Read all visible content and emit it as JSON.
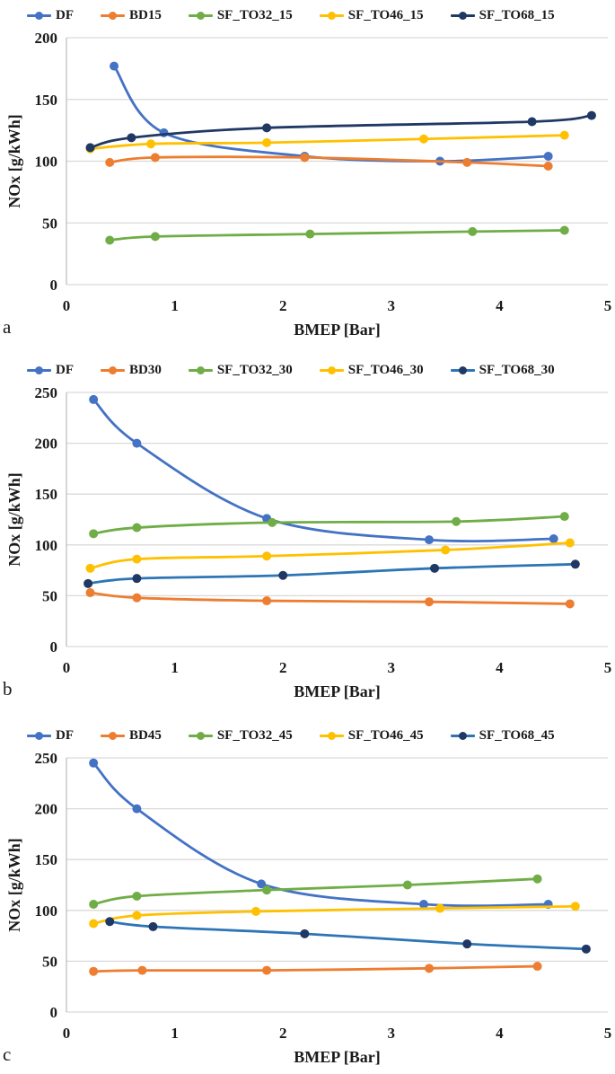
{
  "chart_data": [
    {
      "id": "a",
      "sublabel": "a",
      "type": "line",
      "xlabel": "BMEP [Bar]",
      "ylabel": "NOx [g/kWh]",
      "xlim": [
        0,
        5
      ],
      "ylim": [
        0,
        200
      ],
      "xticks": [
        0,
        1,
        2,
        3,
        4,
        5
      ],
      "yticks": [
        0,
        50,
        100,
        150,
        200
      ],
      "grid": "horizontal",
      "legend_position": "top",
      "series": [
        {
          "name": "DF",
          "line_color": "#4472C4",
          "marker_color": "#4472C4",
          "points": [
            [
              0.44,
              177
            ],
            [
              0.9,
              123
            ],
            [
              2.2,
              104
            ],
            [
              3.45,
              100
            ],
            [
              4.45,
              104
            ]
          ]
        },
        {
          "name": "BD15",
          "line_color": "#ED7D31",
          "marker_color": "#ED7D31",
          "points": [
            [
              0.4,
              99
            ],
            [
              0.82,
              103
            ],
            [
              2.2,
              103
            ],
            [
              3.7,
              99
            ],
            [
              4.45,
              96
            ]
          ]
        },
        {
          "name": "SF_TO32_15",
          "line_color": "#70AD47",
          "marker_color": "#70AD47",
          "points": [
            [
              0.4,
              36
            ],
            [
              0.82,
              39
            ],
            [
              2.25,
              41
            ],
            [
              3.75,
              43
            ],
            [
              4.6,
              44
            ]
          ]
        },
        {
          "name": "SF_TO46_15",
          "line_color": "#FFC000",
          "marker_color": "#FFC000",
          "points": [
            [
              0.22,
              110
            ],
            [
              0.78,
              114
            ],
            [
              1.85,
              115
            ],
            [
              3.3,
              118
            ],
            [
              4.6,
              121
            ]
          ]
        },
        {
          "name": "SF_TO68_15",
          "line_color": "#1F3864",
          "marker_color": "#1F3864",
          "points": [
            [
              0.22,
              111
            ],
            [
              0.6,
              119
            ],
            [
              1.85,
              127
            ],
            [
              4.3,
              132
            ],
            [
              4.85,
              137
            ]
          ]
        }
      ]
    },
    {
      "id": "b",
      "sublabel": "b",
      "type": "line",
      "xlabel": "BMEP [Bar]",
      "ylabel": "NOx [g/kWh]",
      "xlim": [
        0,
        5
      ],
      "ylim": [
        0,
        250
      ],
      "xticks": [
        0,
        1,
        2,
        3,
        4,
        5
      ],
      "yticks": [
        0,
        50,
        100,
        150,
        200,
        250
      ],
      "grid": "horizontal",
      "legend_position": "top",
      "series": [
        {
          "name": "DF",
          "line_color": "#4472C4",
          "marker_color": "#4472C4",
          "points": [
            [
              0.25,
              243
            ],
            [
              0.65,
              200
            ],
            [
              1.85,
              126
            ],
            [
              3.35,
              105
            ],
            [
              4.5,
              106
            ]
          ]
        },
        {
          "name": "BD30",
          "line_color": "#ED7D31",
          "marker_color": "#ED7D31",
          "points": [
            [
              0.22,
              53
            ],
            [
              0.65,
              48
            ],
            [
              1.85,
              45
            ],
            [
              3.35,
              44
            ],
            [
              4.65,
              42
            ]
          ]
        },
        {
          "name": "SF_TO32_30",
          "line_color": "#70AD47",
          "marker_color": "#70AD47",
          "points": [
            [
              0.25,
              111
            ],
            [
              0.65,
              117
            ],
            [
              1.9,
              122
            ],
            [
              3.6,
              123
            ],
            [
              4.6,
              128
            ]
          ]
        },
        {
          "name": "SF_TO46_30",
          "line_color": "#FFC000",
          "marker_color": "#FFC000",
          "points": [
            [
              0.22,
              77
            ],
            [
              0.65,
              86
            ],
            [
              1.85,
              89
            ],
            [
              3.5,
              95
            ],
            [
              4.65,
              102
            ]
          ]
        },
        {
          "name": "SF_TO68_30",
          "line_color": "#2E75B6",
          "marker_color": "#1F3864",
          "points": [
            [
              0.2,
              62
            ],
            [
              0.65,
              67
            ],
            [
              2.0,
              70
            ],
            [
              3.4,
              77
            ],
            [
              4.7,
              81
            ]
          ]
        }
      ]
    },
    {
      "id": "c",
      "sublabel": "c",
      "type": "line",
      "xlabel": "BMEP [Bar]",
      "ylabel": "NOx [g/kWh]",
      "xlim": [
        0,
        5
      ],
      "ylim": [
        0,
        250
      ],
      "xticks": [
        0,
        1,
        2,
        3,
        4,
        5
      ],
      "yticks": [
        0,
        50,
        100,
        150,
        200,
        250
      ],
      "grid": "horizontal",
      "legend_position": "top",
      "series": [
        {
          "name": "DF",
          "line_color": "#4472C4",
          "marker_color": "#4472C4",
          "points": [
            [
              0.25,
              245
            ],
            [
              0.65,
              200
            ],
            [
              1.8,
              126
            ],
            [
              3.3,
              106
            ],
            [
              4.45,
              106
            ]
          ]
        },
        {
          "name": "BD45",
          "line_color": "#ED7D31",
          "marker_color": "#ED7D31",
          "points": [
            [
              0.25,
              40
            ],
            [
              0.7,
              41
            ],
            [
              1.85,
              41
            ],
            [
              3.35,
              43
            ],
            [
              4.35,
              45
            ]
          ]
        },
        {
          "name": "SF_TO32_45",
          "line_color": "#70AD47",
          "marker_color": "#70AD47",
          "points": [
            [
              0.25,
              106
            ],
            [
              0.65,
              114
            ],
            [
              1.85,
              120
            ],
            [
              3.15,
              125
            ],
            [
              4.35,
              131
            ]
          ]
        },
        {
          "name": "SF_TO46_45",
          "line_color": "#FFC000",
          "marker_color": "#FFC000",
          "points": [
            [
              0.25,
              87
            ],
            [
              0.65,
              95
            ],
            [
              1.75,
              99
            ],
            [
              3.45,
              102
            ],
            [
              4.7,
              104
            ]
          ]
        },
        {
          "name": "SF_TO68_45",
          "line_color": "#2E75B6",
          "marker_color": "#1F3864",
          "points": [
            [
              0.4,
              89
            ],
            [
              0.8,
              84
            ],
            [
              2.2,
              77
            ],
            [
              3.7,
              67
            ],
            [
              4.8,
              62
            ]
          ]
        }
      ]
    }
  ],
  "style": {
    "gridline_color": "#D9D9D9",
    "axis_line_color": "#BFBFBF",
    "text_color": "#1a1a1a"
  }
}
